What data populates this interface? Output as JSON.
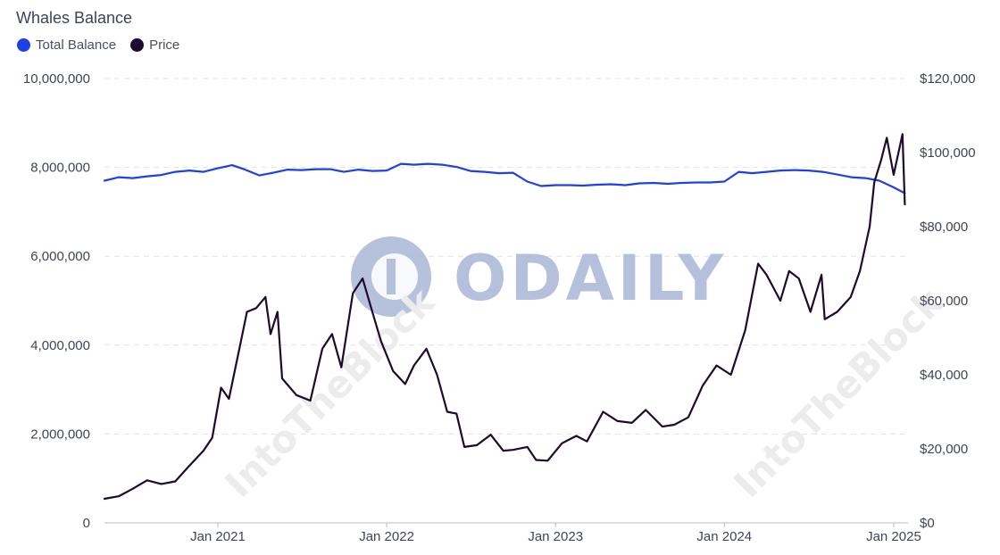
{
  "colors": {
    "balance": "#1e40e6",
    "price": "#1e0a30",
    "grid": "#e3e3e3",
    "watermark": "#a9b6d6"
  },
  "chart_data": {
    "type": "line",
    "title": "Whales Balance",
    "legend": [
      "Total Balance",
      "Price"
    ],
    "legend_position": "top-left",
    "x_ticks": [
      "Jan 2021",
      "Jan 2022",
      "Jan 2023",
      "Jan 2024",
      "Jan 2025"
    ],
    "xlim": [
      "2020-05-01",
      "2025-02-01"
    ],
    "y_left": {
      "label": "",
      "ylim": [
        0,
        10000000
      ],
      "ticks": [
        "0",
        "2,000,000",
        "4,000,000",
        "6,000,000",
        "8,000,000",
        "10,000,000"
      ]
    },
    "y_right": {
      "label": "",
      "ylim": [
        0,
        120000
      ],
      "ticks": [
        "$0",
        "$20,000",
        "$40,000",
        "$60,000",
        "$80,000",
        "$100,000",
        "$120,000"
      ]
    },
    "grid": true,
    "series": [
      {
        "name": "Total Balance",
        "axis": "left",
        "x": [
          "2020-05-01",
          "2020-06-01",
          "2020-07-01",
          "2020-08-01",
          "2020-09-01",
          "2020-10-01",
          "2020-11-01",
          "2020-12-01",
          "2021-01-01",
          "2021-02-01",
          "2021-03-01",
          "2021-04-01",
          "2021-05-01",
          "2021-06-01",
          "2021-07-01",
          "2021-08-01",
          "2021-09-01",
          "2021-10-01",
          "2021-11-01",
          "2021-12-01",
          "2022-01-01",
          "2022-02-01",
          "2022-03-01",
          "2022-04-01",
          "2022-05-01",
          "2022-06-01",
          "2022-07-01",
          "2022-08-01",
          "2022-09-01",
          "2022-10-01",
          "2022-11-01",
          "2022-12-01",
          "2023-01-01",
          "2023-02-01",
          "2023-03-01",
          "2023-04-01",
          "2023-05-01",
          "2023-06-01",
          "2023-07-01",
          "2023-08-01",
          "2023-09-01",
          "2023-10-01",
          "2023-11-01",
          "2023-12-01",
          "2024-01-01",
          "2024-02-01",
          "2024-03-01",
          "2024-04-01",
          "2024-05-01",
          "2024-06-01",
          "2024-07-01",
          "2024-08-01",
          "2024-09-01",
          "2024-10-01",
          "2024-11-01",
          "2024-12-01",
          "2025-01-01",
          "2025-01-25"
        ],
        "values": [
          7700000,
          7780000,
          7760000,
          7800000,
          7830000,
          7900000,
          7930000,
          7900000,
          7980000,
          8050000,
          7950000,
          7820000,
          7880000,
          7950000,
          7940000,
          7960000,
          7960000,
          7900000,
          7950000,
          7920000,
          7930000,
          8080000,
          8060000,
          8080000,
          8060000,
          8010000,
          7920000,
          7900000,
          7870000,
          7880000,
          7680000,
          7580000,
          7600000,
          7600000,
          7590000,
          7610000,
          7620000,
          7600000,
          7640000,
          7650000,
          7630000,
          7650000,
          7660000,
          7660000,
          7680000,
          7900000,
          7870000,
          7900000,
          7930000,
          7940000,
          7930000,
          7900000,
          7840000,
          7780000,
          7760000,
          7700000,
          7550000,
          7420000
        ]
      },
      {
        "name": "Price",
        "axis": "right",
        "x": [
          "2020-05-01",
          "2020-06-01",
          "2020-07-01",
          "2020-08-01",
          "2020-09-01",
          "2020-10-01",
          "2020-11-01",
          "2020-12-01",
          "2020-12-20",
          "2021-01-08",
          "2021-01-25",
          "2021-02-20",
          "2021-03-05",
          "2021-03-25",
          "2021-04-14",
          "2021-04-25",
          "2021-05-10",
          "2021-05-20",
          "2021-06-20",
          "2021-07-20",
          "2021-08-15",
          "2021-09-05",
          "2021-09-25",
          "2021-10-20",
          "2021-11-10",
          "2021-12-01",
          "2021-12-20",
          "2022-01-15",
          "2022-02-10",
          "2022-03-01",
          "2022-03-28",
          "2022-04-20",
          "2022-05-12",
          "2022-06-01",
          "2022-06-18",
          "2022-07-15",
          "2022-08-14",
          "2022-09-10",
          "2022-10-01",
          "2022-11-01",
          "2022-11-20",
          "2022-12-15",
          "2023-01-15",
          "2023-02-15",
          "2023-03-10",
          "2023-04-14",
          "2023-05-15",
          "2023-06-15",
          "2023-07-15",
          "2023-08-20",
          "2023-09-15",
          "2023-10-15",
          "2023-11-15",
          "2023-12-15",
          "2024-01-15",
          "2024-02-15",
          "2024-03-14",
          "2024-04-01",
          "2024-05-01",
          "2024-05-20",
          "2024-06-10",
          "2024-07-05",
          "2024-07-29",
          "2024-08-05",
          "2024-09-01",
          "2024-09-30",
          "2024-10-20",
          "2024-11-10",
          "2024-11-20",
          "2024-12-05",
          "2024-12-17",
          "2025-01-01",
          "2025-01-20",
          "2025-01-25"
        ],
        "values": [
          6500,
          7200,
          9200,
          11500,
          10500,
          11200,
          15500,
          19500,
          23000,
          36500,
          33500,
          49000,
          57000,
          58000,
          61000,
          51000,
          57000,
          39000,
          34500,
          33000,
          47000,
          51000,
          42000,
          62000,
          66000,
          57000,
          49000,
          41000,
          37500,
          42500,
          47000,
          40000,
          30000,
          29500,
          20500,
          21000,
          23800,
          19500,
          19700,
          20500,
          17000,
          16800,
          21500,
          23500,
          22000,
          30000,
          27500,
          27000,
          30500,
          26000,
          26500,
          28500,
          37000,
          42500,
          40000,
          52000,
          70000,
          67000,
          60000,
          68000,
          66000,
          57000,
          67000,
          55000,
          57000,
          61000,
          68000,
          80000,
          92000,
          98000,
          104000,
          94000,
          105000,
          86000
        ]
      }
    ]
  },
  "watermarks": {
    "center": "ODAILY",
    "diagonal": "IntoTheBlock"
  }
}
